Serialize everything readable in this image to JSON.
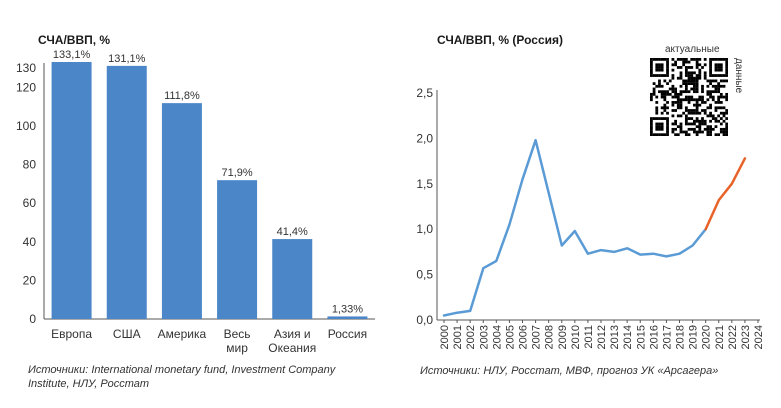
{
  "chart_data": [
    {
      "type": "bar",
      "title": "СЧА/ВВП, %",
      "categories": [
        [
          "Европа"
        ],
        [
          "США"
        ],
        [
          "Америка"
        ],
        [
          "Весь",
          "мир"
        ],
        [
          "Азия и",
          "Океания"
        ],
        [
          "Россия"
        ]
      ],
      "values": [
        133.1,
        131.1,
        111.8,
        71.9,
        41.4,
        1.33
      ],
      "data_labels": [
        "133,1%",
        "131,1%",
        "111,8%",
        "71,9%",
        "41,4%",
        "1,33%"
      ],
      "y_ticks": [
        "0",
        "20",
        "40",
        "60",
        "80",
        "100",
        "120",
        "130"
      ],
      "y_tick_values": [
        0,
        20,
        40,
        60,
        80,
        100,
        120,
        130
      ],
      "ylim": [
        0,
        130
      ],
      "bar_color": "#4a86c8",
      "grid": false,
      "source": [
        "Источники: International monetary fund, Investment Company",
        "Institute, НЛУ, Росстат"
      ]
    },
    {
      "type": "line",
      "title": "СЧА/ВВП, % (Россия)",
      "x": [
        2000,
        2001,
        2002,
        2003,
        2004,
        2005,
        2006,
        2007,
        2008,
        2009,
        2010,
        2011,
        2012,
        2013,
        2014,
        2015,
        2016,
        2017,
        2018,
        2019,
        2020,
        2021,
        2022,
        2023
      ],
      "series": [
        {
          "color": "#5b9bd5",
          "values": [
            0.05,
            0.08,
            0.1,
            0.57,
            0.65,
            1.05,
            1.55,
            1.98,
            1.4,
            0.82,
            0.98,
            0.73,
            0.77,
            0.75,
            0.79,
            0.72,
            0.73,
            0.7,
            0.73,
            0.82,
            1.0,
            null,
            null,
            null
          ]
        },
        {
          "color": "#e8632a",
          "values": [
            null,
            null,
            null,
            null,
            null,
            null,
            null,
            null,
            null,
            null,
            null,
            null,
            null,
            null,
            null,
            null,
            null,
            null,
            null,
            null,
            1.0,
            1.32,
            1.5,
            1.78
          ]
        }
      ],
      "x_ticks": [
        "2000",
        "2001",
        "2002",
        "2003",
        "2004",
        "2005",
        "2006",
        "2007",
        "2008",
        "2009",
        "2010",
        "2011",
        "2012",
        "2013",
        "2014",
        "2015",
        "2016",
        "2017",
        "2018",
        "2019",
        "2020",
        "2021",
        "2022",
        "2023",
        "2024"
      ],
      "y_ticks": [
        "0,0",
        "0,5",
        "1,0",
        "1,5",
        "2,0",
        "2,5"
      ],
      "y_tick_values": [
        0,
        0.5,
        1.0,
        1.5,
        2.0,
        2.5
      ],
      "ylim": [
        0,
        2.5
      ],
      "grid": false,
      "source": "Источники: НЛУ, Росстат, МВФ, прогноз УК «Арсагера»"
    }
  ],
  "qr": {
    "caption_top": "актуальные",
    "caption_side": "данные"
  }
}
